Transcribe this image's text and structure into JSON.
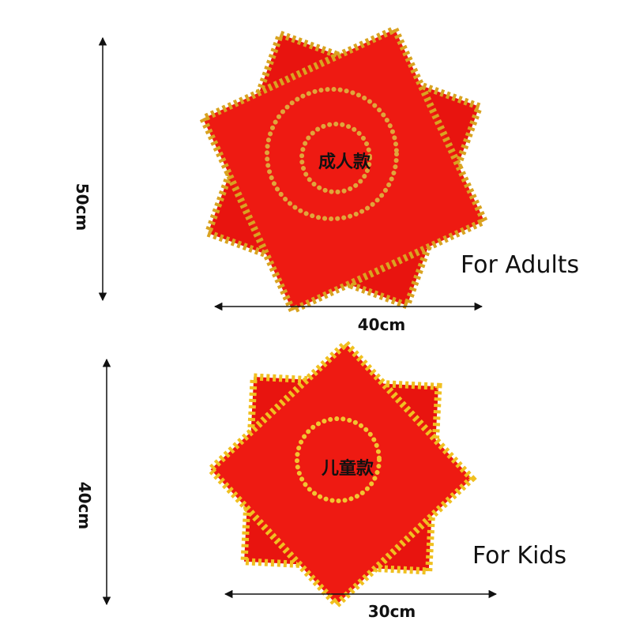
{
  "adult": {
    "height": "50cm",
    "width": "40cm",
    "tag": "成人款",
    "caption": "For Adults"
  },
  "kid": {
    "height": "40cm",
    "width": "30cm",
    "tag": "儿童款",
    "caption": "For Kids"
  }
}
